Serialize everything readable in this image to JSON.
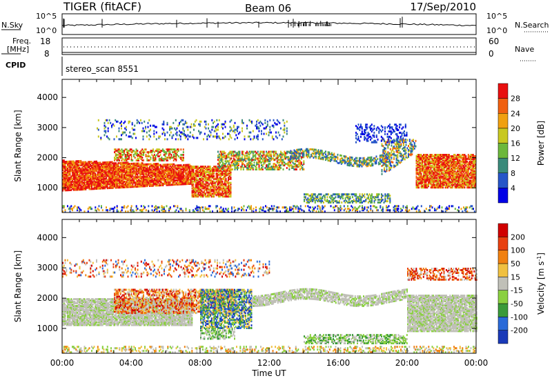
{
  "header": {
    "radar": "TIGER (fitACF)",
    "beam": "Beam 06",
    "date": "17/Sep/2010"
  },
  "top_panels": {
    "nsky": {
      "label": "N.Sky",
      "tick_top": "10^5",
      "tick_bottom": "10^0"
    },
    "nsearch": {
      "label": "N.Search",
      "tick_top": "10^5",
      "tick_bottom": "10^0"
    },
    "freq": {
      "label_line1": "Freq.",
      "label_line2": "[MHz]",
      "tick_top": "18",
      "tick_bottom": "8"
    },
    "nave": {
      "label": "Nave",
      "tick_top": "60",
      "tick_bottom": "0"
    },
    "cpid": {
      "label": "CPID",
      "value": "stereo_scan 8551"
    }
  },
  "chart_data": [
    {
      "type": "heatmap",
      "title": "",
      "xlabel": "",
      "ylabel": "Slant Range [km]",
      "xlim": [
        0,
        24
      ],
      "ylim": [
        180,
        4600
      ],
      "ytick_values": [
        1000,
        2000,
        3000,
        4000
      ],
      "yticks": [
        "1000",
        "2000",
        "3000",
        "4000"
      ],
      "colorbar": {
        "label": "Power [dB]",
        "ticks": [
          "4",
          "8",
          "12",
          "16",
          "20",
          "24",
          "28"
        ],
        "colors": [
          "#0000e6",
          "#2655c8",
          "#3a8a7a",
          "#6cb83c",
          "#c8c820",
          "#f0a010",
          "#f06010",
          "#e81010"
        ]
      }
    },
    {
      "type": "heatmap",
      "title": "",
      "xlabel": "Time UT",
      "ylabel": "Slant Range [km]",
      "xlim": [
        0,
        24
      ],
      "ylim": [
        180,
        4600
      ],
      "ytick_values": [
        1000,
        2000,
        3000,
        4000
      ],
      "yticks": [
        "1000",
        "2000",
        "3000",
        "4000"
      ],
      "xticks": [
        "00:00",
        "04:00",
        "08:00",
        "12:00",
        "16:00",
        "20:00",
        "00:00"
      ],
      "colorbar": {
        "label": "Velocity [m s",
        "label_sup": "-1",
        "label_end": "]",
        "ticks": [
          "200",
          "100",
          "50",
          "15",
          "-15",
          "-50",
          "-100",
          "-200"
        ],
        "colors": [
          "#1a3ab8",
          "#2a6ad8",
          "#3a9a3a",
          "#8ad040",
          "#c0c0b8",
          "#f0c040",
          "#f08010",
          "#e84010",
          "#d00000"
        ]
      }
    }
  ]
}
